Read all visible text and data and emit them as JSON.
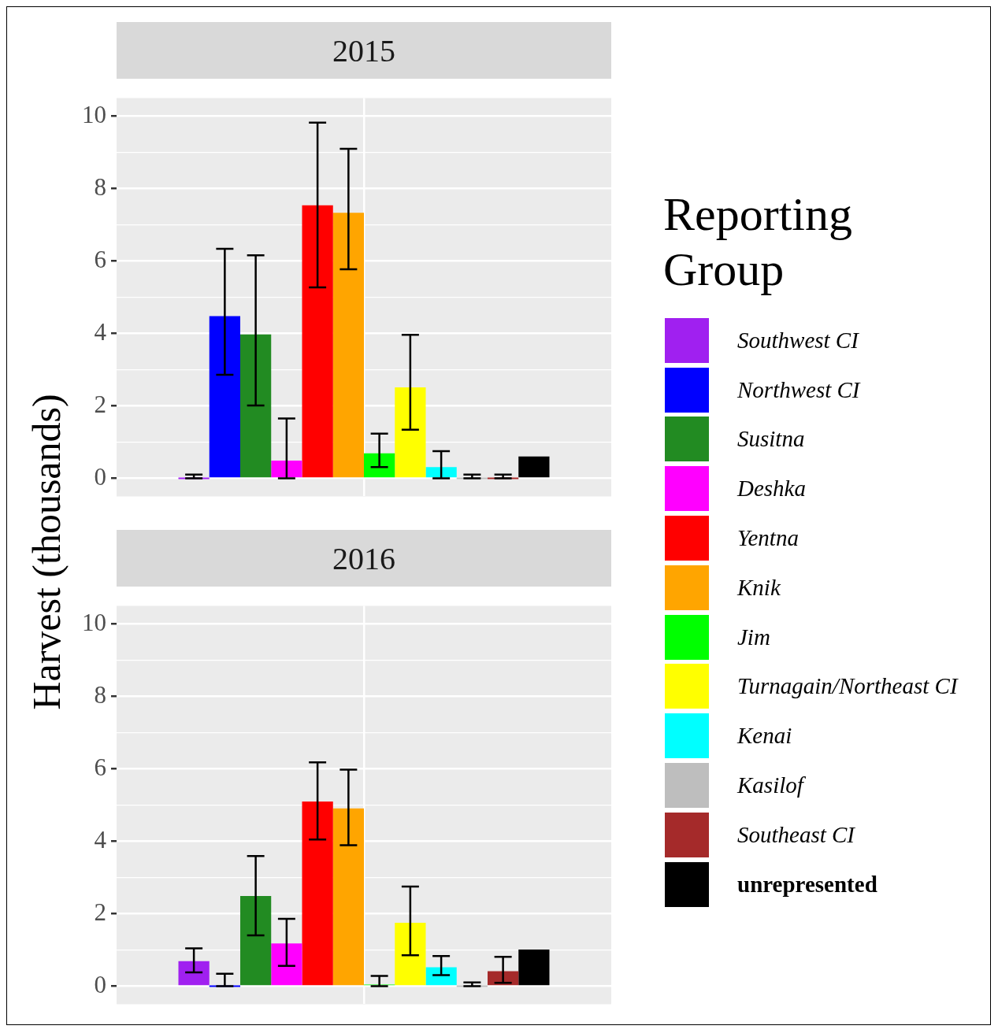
{
  "chart_data": [
    {
      "type": "bar",
      "title": "2015",
      "ylabel": "Harvest (thousands)",
      "legend_title": "Reporting Group",
      "legend": "right",
      "grid": true,
      "tick_labels": "y",
      "categories": [
        null
      ],
      "ylim": [
        -0.5,
        10.5
      ],
      "yticks": [
        0,
        {
          "value": 1,
          "label": null
        },
        2,
        {
          "value": 3,
          "label": null
        },
        4,
        {
          "value": 5,
          "label": null
        },
        6,
        {
          "value": 7,
          "label": null
        },
        8,
        {
          "value": 9,
          "label": null
        },
        10
      ],
      "series": [
        {
          "name": "Southwest CI",
          "color": "#a020f0",
          "values": [
            0
          ],
          "errors": [
            [
              0,
              0.1
            ]
          ]
        },
        {
          "name": "Northwest CI",
          "color": "#0000ff",
          "values": [
            4.48
          ],
          "errors": [
            [
              2.86,
              6.34
            ]
          ]
        },
        {
          "name": "Susitna",
          "color": "#228b22",
          "values": [
            3.97
          ],
          "errors": [
            [
              2.01,
              6.16
            ]
          ]
        },
        {
          "name": "Deshka",
          "color": "#ff00ff",
          "values": [
            0.49
          ],
          "errors": [
            [
              0,
              1.65
            ]
          ]
        },
        {
          "name": "Yentna",
          "color": "#ff0000",
          "values": [
            7.54
          ],
          "errors": [
            [
              5.27,
              9.82
            ]
          ]
        },
        {
          "name": "Knik",
          "color": "#ffa500",
          "values": [
            7.33
          ],
          "errors": [
            [
              5.77,
              9.1
            ]
          ]
        },
        {
          "name": "Jim",
          "color": "#00ff00",
          "values": [
            0.69
          ],
          "errors": [
            [
              0.31,
              1.23
            ]
          ]
        },
        {
          "name": "Turnagain/Northeast CI",
          "color": "#ffff00",
          "values": [
            2.51
          ],
          "errors": [
            [
              1.34,
              3.96
            ]
          ]
        },
        {
          "name": "Kenai",
          "color": "#00ffff",
          "values": [
            0.31
          ],
          "errors": [
            [
              0,
              0.75
            ]
          ]
        },
        {
          "name": "Kasilof",
          "color": "#bebebe",
          "values": [
            0
          ],
          "errors": [
            [
              0,
              0.1
            ]
          ]
        },
        {
          "name": "Southeast CI",
          "color": "#a52a2a",
          "values": [
            0
          ],
          "errors": [
            [
              0,
              0.1
            ]
          ]
        },
        {
          "name": "unrepresented",
          "color": "#000000",
          "values": [
            0.6
          ]
        }
      ]
    },
    {
      "type": "bar",
      "title": "2016",
      "grid": true,
      "tick_labels": "y",
      "categories": [
        null
      ],
      "ylim": [
        -0.5,
        10.5
      ],
      "yticks": [
        0,
        {
          "value": 1,
          "label": null
        },
        2,
        {
          "value": 3,
          "label": null
        },
        4,
        {
          "value": 5,
          "label": null
        },
        6,
        {
          "value": 7,
          "label": null
        },
        8,
        {
          "value": 9,
          "label": null
        },
        10
      ],
      "series": [
        {
          "color": "#a020f0",
          "values": [
            0.69
          ],
          "errors": [
            [
              0.38,
              1.04
            ]
          ]
        },
        {
          "color": "#0000ff",
          "values": [
            0
          ],
          "errors": [
            [
              0,
              0.34
            ]
          ]
        },
        {
          "color": "#228b22",
          "values": [
            2.49
          ],
          "errors": [
            [
              1.4,
              3.59
            ]
          ]
        },
        {
          "color": "#ff00ff",
          "values": [
            1.18
          ],
          "errors": [
            [
              0.56,
              1.86
            ]
          ]
        },
        {
          "color": "#ff0000",
          "values": [
            5.1
          ],
          "errors": [
            [
              4.05,
              6.18
            ]
          ]
        },
        {
          "color": "#ffa500",
          "values": [
            4.91
          ],
          "errors": [
            [
              3.89,
              5.98
            ]
          ]
        },
        {
          "color": "#00ff00",
          "values": [
            0.02
          ],
          "errors": [
            [
              0,
              0.28
            ]
          ]
        },
        {
          "color": "#ffff00",
          "values": [
            1.75
          ],
          "errors": [
            [
              0.85,
              2.75
            ]
          ]
        },
        {
          "color": "#00ffff",
          "values": [
            0.52
          ],
          "errors": [
            [
              0.3,
              0.83
            ]
          ]
        },
        {
          "color": "#bebebe",
          "values": [
            0
          ],
          "errors": [
            [
              0,
              0.1
            ]
          ]
        },
        {
          "color": "#a52a2a",
          "values": [
            0.41
          ],
          "errors": [
            [
              0.09,
              0.81
            ]
          ]
        },
        {
          "color": "#000000",
          "values": [
            1.01
          ]
        }
      ]
    }
  ]
}
